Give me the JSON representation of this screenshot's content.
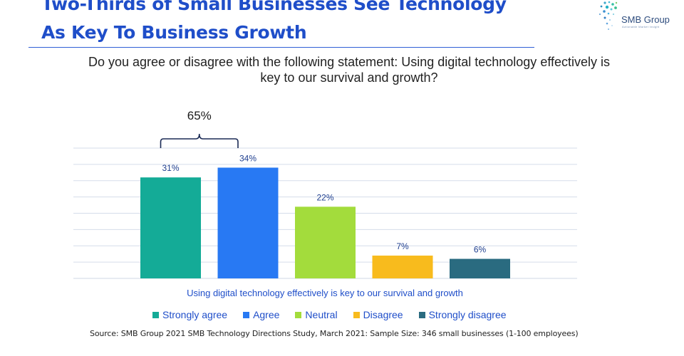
{
  "header": {
    "title_line1": "Two-Thirds of Small Businesses See Technology",
    "title_line2": "As Key To Business Growth",
    "logo_name": "SMB Group",
    "logo_tagline": "Actionable Market Insight"
  },
  "question": "Do you agree or disagree with the following statement: Using digital technology effectively is key to our survival and growth?",
  "chart_data": {
    "type": "bar",
    "categories": [
      "Strongly agree",
      "Agree",
      "Neutral",
      "Disagree",
      "Strongly disagree"
    ],
    "values": [
      31,
      34,
      22,
      7,
      6
    ],
    "value_labels": [
      "31%",
      "34%",
      "22%",
      "7%",
      "6%"
    ],
    "colors": [
      "#14ab97",
      "#2879f3",
      "#a3dc3c",
      "#f8bb1d",
      "#2a6b80"
    ],
    "xlabel": "Using digital technology effectively is key to our survival and growth",
    "ylim": [
      0,
      40
    ],
    "grid": true,
    "legend_position": "bottom",
    "bracket": {
      "label": "65%",
      "spans": [
        "Strongly agree",
        "Agree"
      ]
    }
  },
  "source": "Source: SMB Group 2021 SMB Technology Directions Study, March 2021: Sample Size:  346 small businesses (1-100 employees)"
}
